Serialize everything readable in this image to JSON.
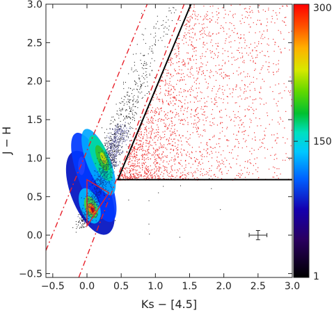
{
  "chart_data": {
    "type": "scatter",
    "title": "",
    "xlabel": "Ks − [4.5]",
    "ylabel": "J − H",
    "xlim": [
      -0.6,
      3.0
    ],
    "ylim": [
      -0.55,
      3.0
    ],
    "xticks": [
      -0.5,
      0.0,
      0.5,
      1.0,
      1.5,
      2.0,
      2.5,
      3.0
    ],
    "yticks": [
      -0.5,
      0.0,
      0.5,
      1.0,
      1.5,
      2.0,
      2.5,
      3.0
    ],
    "xtick_labels": [
      "−0.5",
      "0.0",
      "0.5",
      "1.0",
      "1.5",
      "2.0",
      "2.5",
      "3.0"
    ],
    "ytick_labels": [
      "−0.5",
      "0.0",
      "0.5",
      "1.0",
      "1.5",
      "2.0",
      "2.5",
      "3.0"
    ],
    "density": {
      "description_scale": "point density",
      "colorbar_ticks": [
        1,
        150,
        300
      ],
      "colorbar_tick_labels": [
        "1",
        "150",
        "300"
      ]
    },
    "selection_region": {
      "color": "#000000",
      "vertices": [
        [
          0.45,
          0.72
        ],
        [
          3.0,
          0.72
        ],
        [
          3.0,
          3.0
        ],
        [
          1.52,
          3.0
        ]
      ]
    },
    "reddening_lines": {
      "color": "#e8202a",
      "style": "dash-dot",
      "lines": [
        [
          [
            -0.6,
            -0.2
          ],
          [
            0.88,
            3.0
          ]
        ],
        [
          [
            -0.12,
            -0.55
          ],
          [
            1.42,
            3.0
          ]
        ]
      ]
    },
    "red_box": {
      "color": "#e8202a",
      "vertices": [
        [
          0.0,
          0.72
        ],
        [
          0.0,
          0.12
        ],
        [
          0.32,
          0.55
        ]
      ]
    },
    "error_bar": {
      "x": 2.5,
      "y": 0.0,
      "xerr": 0.13,
      "yerr": 0.06,
      "color": "#222222"
    },
    "grid": false,
    "colors": {
      "selected_points": "#ee3030",
      "density_cmap": [
        "#000000",
        "#3a0070",
        "#0000d0",
        "#0090ff",
        "#00d8e0",
        "#10c040",
        "#b0e000",
        "#ffd000",
        "#ff7000",
        "#ff0000"
      ]
    }
  }
}
